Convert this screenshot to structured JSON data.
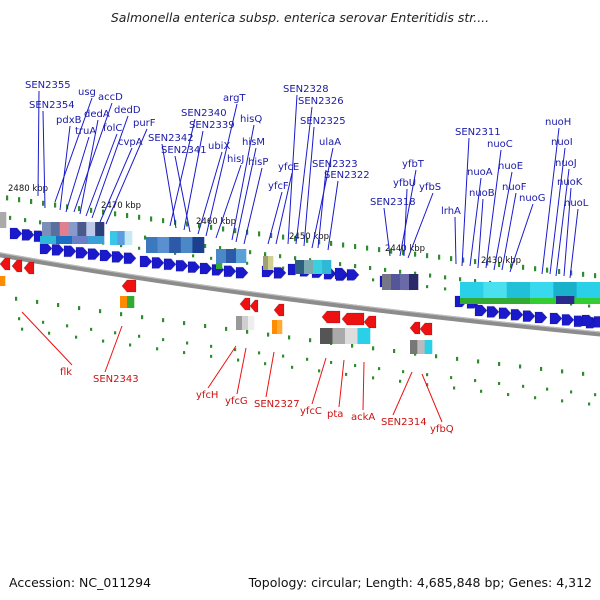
{
  "title": "Salmonella enterica subsp. enterica serovar Enteritidis str....",
  "accession_text": "Accession: NC_011294",
  "topology_text": "Topology: circular; Length: 4,685,848 bp; Genes: 4,312",
  "colors": {
    "backbone": "#8c8c8c",
    "forward_gene": "#1a1acc",
    "reverse_gene": "#ee1111",
    "tick": "#2e8b2e",
    "label_forward": "#1a1aaa",
    "label_reverse": "#cc1111"
  },
  "kbp_labels": [
    "2480 kbp",
    "2470 kbp",
    "2460 kbp",
    "2450 kbp",
    "2440 kbp",
    "2430 kbp"
  ],
  "forward_genes": [
    "SEN2355",
    "SEN2354",
    "usg",
    "pdxB",
    "truA",
    "accD",
    "dedA",
    "folC",
    "dedD",
    "cvpA",
    "purF",
    "SEN2340",
    "SEN2342",
    "SEN2339",
    "SEN2341",
    "ubiX",
    "argT",
    "hisJ",
    "hisQ",
    "hisM",
    "hisP",
    "yfcF",
    "yfcE",
    "SEN2328",
    "SEN2326",
    "SEN2325",
    "ulaA",
    "SEN2323",
    "SEN2322",
    "yfbU",
    "SEN2318",
    "yfbT",
    "yfbS",
    "lrhA",
    "SEN2311",
    "nuoA",
    "nuoB",
    "nuoC",
    "nuoE",
    "nuoF",
    "nuoG",
    "nuoH",
    "nuoI",
    "nuoJ",
    "nuoK",
    "nuoL"
  ],
  "reverse_genes": [
    "flk",
    "SEN2343",
    "yfcH",
    "yfcG",
    "SEN2327",
    "yfcC",
    "pta",
    "ackA",
    "SEN2314",
    "yfbQ"
  ]
}
